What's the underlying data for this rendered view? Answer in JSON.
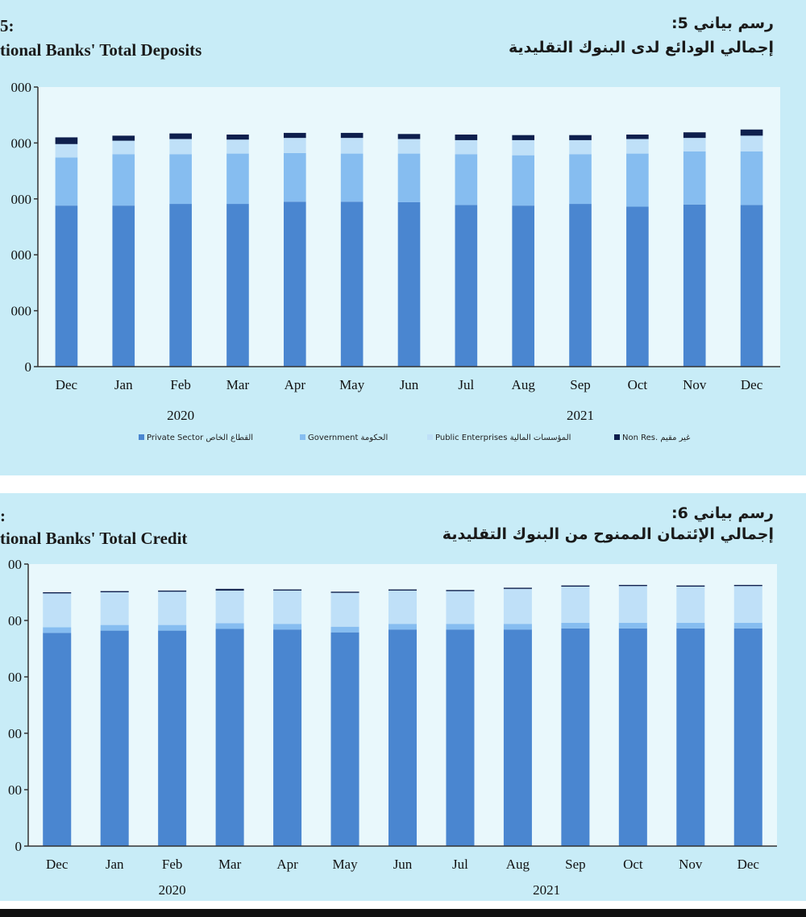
{
  "charts": [
    {
      "title_num_en": "5:",
      "title_en": "tional Banks' Total Deposits",
      "title_num_ar": "رسم بياني 5:",
      "title_ar": "إجمالي الودائع لدى البنوك التقليدية"
    },
    {
      "title_num_en": ":",
      "title_en": "tional Banks' Total Credit",
      "title_num_ar": "رسم بياني 6:",
      "title_ar": "إجمالي الإئتمان الممنوح من البنوك التقليدية"
    }
  ],
  "chart_data": [
    {
      "type": "bar",
      "stacked": true,
      "title": "tional Banks' Total Deposits",
      "categories": [
        "Dec",
        "Jan",
        "Feb",
        "Mar",
        "Apr",
        "May",
        "Jun",
        "Jul",
        "Aug",
        "Sep",
        "Oct",
        "Nov",
        "Dec"
      ],
      "year_labels": [
        {
          "label": "2020",
          "category_index": 2
        },
        {
          "label": "2021",
          "category_index": 9
        }
      ],
      "y_tick_labels": [
        "000",
        "000",
        "000",
        "000",
        "000",
        "0"
      ],
      "ylim": [
        0,
        5
      ],
      "grid": false,
      "legend_position": "bottom",
      "series": [
        {
          "name": "Private Sector القطاع الخاص",
          "color": "#4a86d0",
          "values": [
            2.88,
            2.88,
            2.91,
            2.91,
            2.95,
            2.95,
            2.94,
            2.89,
            2.88,
            2.91,
            2.86,
            2.9,
            2.89
          ]
        },
        {
          "name": "Government الحكومة",
          "color": "#86bdf0",
          "values": [
            0.86,
            0.92,
            0.89,
            0.9,
            0.87,
            0.86,
            0.87,
            0.91,
            0.9,
            0.89,
            0.95,
            0.95,
            0.96
          ]
        },
        {
          "name": "Public Enterprises المؤسسات المالية",
          "color": "#bfe0f8",
          "values": [
            0.24,
            0.24,
            0.27,
            0.25,
            0.27,
            0.28,
            0.26,
            0.25,
            0.27,
            0.25,
            0.26,
            0.24,
            0.28
          ]
        },
        {
          "name": "Non Res. غير مقيم",
          "color": "#0e1f4d",
          "values": [
            0.12,
            0.09,
            0.1,
            0.09,
            0.09,
            0.09,
            0.09,
            0.1,
            0.09,
            0.09,
            0.08,
            0.1,
            0.11
          ]
        }
      ]
    },
    {
      "type": "bar",
      "stacked": true,
      "title": "tional Banks' Total Credit",
      "categories": [
        "Dec",
        "Jan",
        "Feb",
        "Mar",
        "Apr",
        "May",
        "Jun",
        "Jul",
        "Aug",
        "Sep",
        "Oct",
        "Nov",
        "Dec"
      ],
      "year_labels": [
        {
          "label": "2020",
          "category_index": 2
        },
        {
          "label": "2021",
          "category_index": 8.5
        }
      ],
      "y_tick_labels": [
        "00",
        "00",
        "00",
        "00",
        "00",
        "0"
      ],
      "ylim": [
        0,
        5
      ],
      "grid": false,
      "legend_position": "none",
      "series": [
        {
          "name": "Private Sector",
          "color": "#4a86d0",
          "values": [
            3.78,
            3.82,
            3.82,
            3.85,
            3.84,
            3.79,
            3.84,
            3.84,
            3.84,
            3.86,
            3.86,
            3.86,
            3.86
          ]
        },
        {
          "name": "Government",
          "color": "#86bdf0",
          "values": [
            0.1,
            0.1,
            0.1,
            0.1,
            0.1,
            0.1,
            0.1,
            0.1,
            0.1,
            0.1,
            0.1,
            0.1,
            0.1
          ]
        },
        {
          "name": "Public Enterprises",
          "color": "#bfe0f8",
          "values": [
            0.6,
            0.58,
            0.59,
            0.58,
            0.59,
            0.6,
            0.59,
            0.58,
            0.62,
            0.64,
            0.65,
            0.64,
            0.65
          ]
        },
        {
          "name": "Non Res.",
          "color": "#0e1f4d",
          "values": [
            0.02,
            0.02,
            0.02,
            0.03,
            0.02,
            0.02,
            0.02,
            0.02,
            0.02,
            0.02,
            0.02,
            0.02,
            0.02
          ]
        }
      ]
    }
  ]
}
